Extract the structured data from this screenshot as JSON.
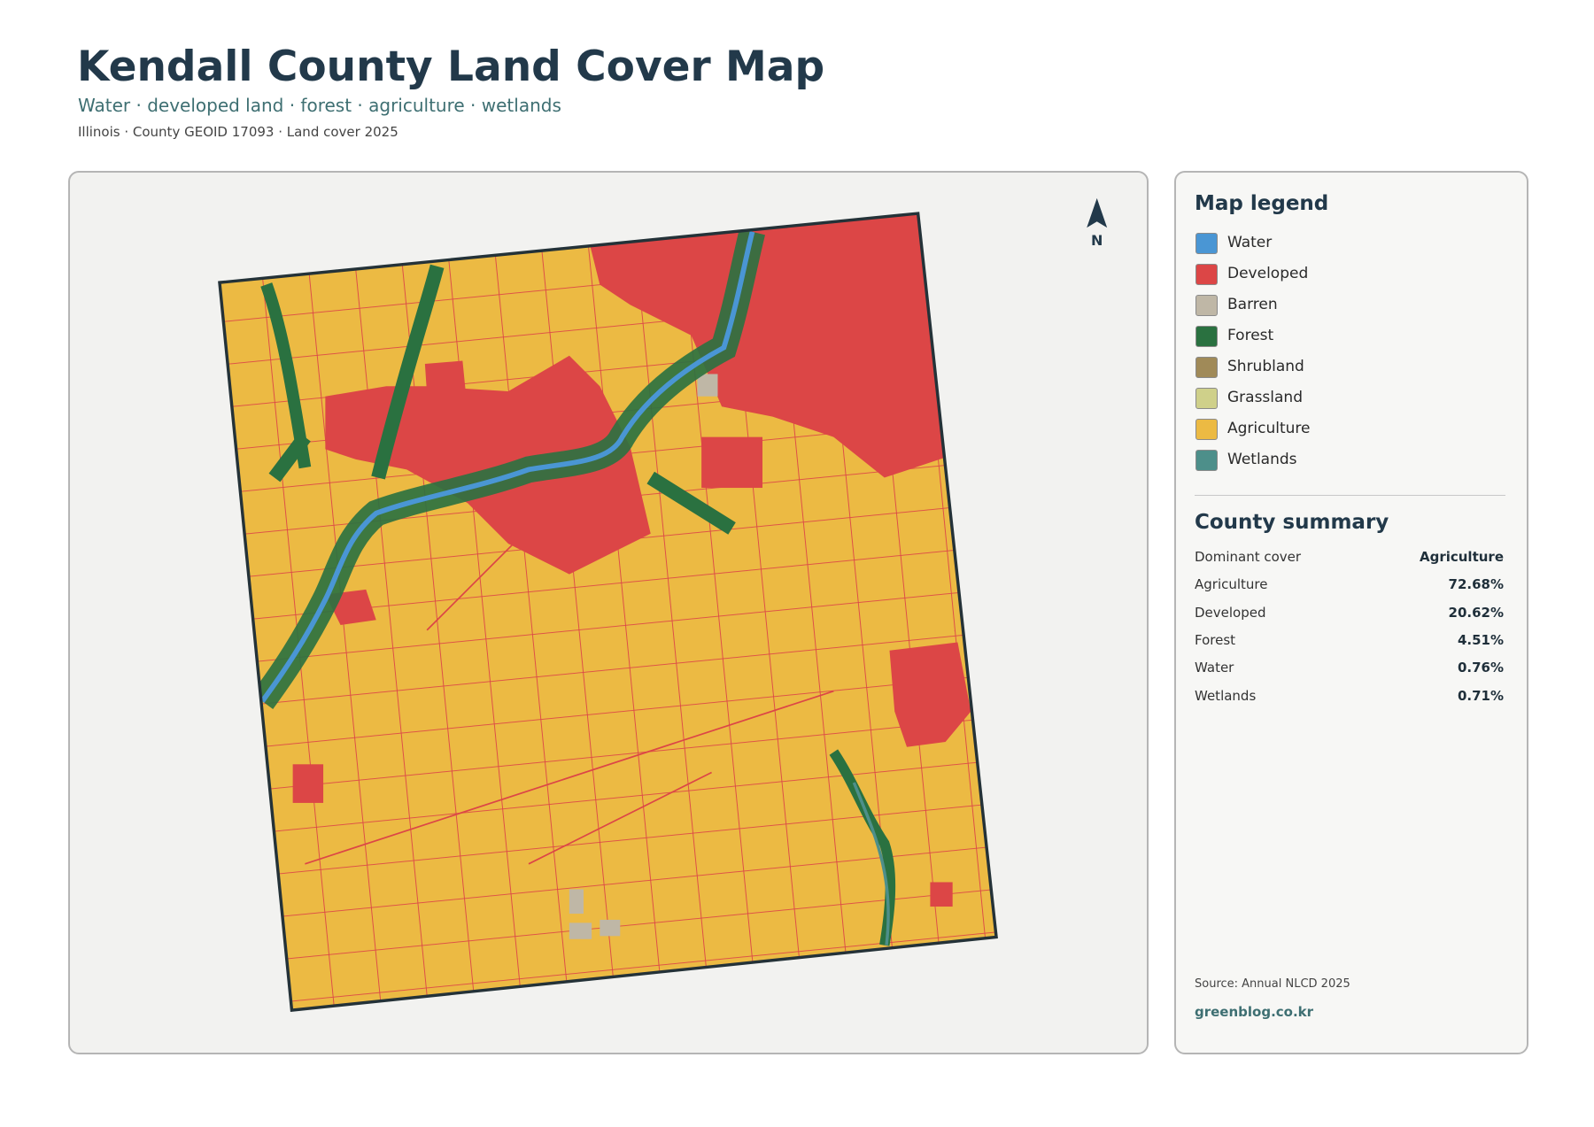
{
  "header": {
    "title": "Kendall County Land Cover Map",
    "subtitle": "Water · developed land · forest · agriculture · wetlands",
    "meta": "Illinois · County GEOID 17093 · Land cover 2025"
  },
  "north": "N",
  "legend": {
    "title": "Map legend",
    "items": [
      {
        "label": "Water",
        "color": "#4a96d4"
      },
      {
        "label": "Developed",
        "color": "#dc4646"
      },
      {
        "label": "Barren",
        "color": "#bfb7a6"
      },
      {
        "label": "Forest",
        "color": "#2a7140"
      },
      {
        "label": "Shrubland",
        "color": "#a08a58"
      },
      {
        "label": "Grassland",
        "color": "#cfd08a"
      },
      {
        "label": "Agriculture",
        "color": "#ecba43"
      },
      {
        "label": "Wetlands",
        "color": "#4d8f8a"
      }
    ]
  },
  "summary": {
    "title": "County summary",
    "rows": [
      {
        "label": "Dominant cover",
        "value": "Agriculture"
      },
      {
        "label": "Agriculture",
        "value": "72.68%"
      },
      {
        "label": "Developed",
        "value": "20.62%"
      },
      {
        "label": "Forest",
        "value": "4.51%"
      },
      {
        "label": "Water",
        "value": "0.76%"
      },
      {
        "label": "Wetlands",
        "value": "0.71%"
      }
    ]
  },
  "footer": {
    "source": "Source: Annual NLCD 2025",
    "site": "greenblog.co.kr"
  }
}
